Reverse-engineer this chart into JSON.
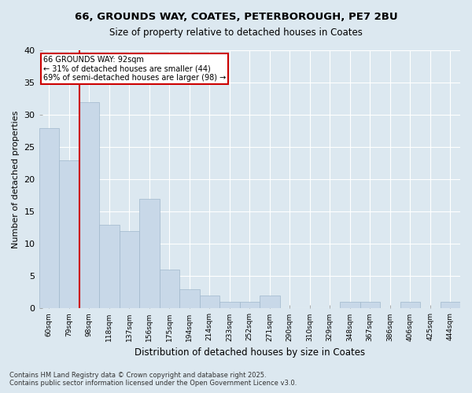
{
  "title_line1": "66, GROUNDS WAY, COATES, PETERBOROUGH, PE7 2BU",
  "title_line2": "Size of property relative to detached houses in Coates",
  "xlabel": "Distribution of detached houses by size in Coates",
  "ylabel": "Number of detached properties",
  "categories": [
    "60sqm",
    "79sqm",
    "98sqm",
    "118sqm",
    "137sqm",
    "156sqm",
    "175sqm",
    "194sqm",
    "214sqm",
    "233sqm",
    "252sqm",
    "271sqm",
    "290sqm",
    "310sqm",
    "329sqm",
    "348sqm",
    "367sqm",
    "386sqm",
    "406sqm",
    "425sqm",
    "444sqm"
  ],
  "values": [
    28,
    23,
    32,
    13,
    12,
    17,
    6,
    3,
    2,
    1,
    1,
    2,
    0,
    0,
    0,
    1,
    1,
    0,
    1,
    0,
    1
  ],
  "bar_color": "#c8d8e8",
  "bar_edge_color": "#a0b8cc",
  "annotation_title": "66 GROUNDS WAY: 92sqm",
  "annotation_line2": "← 31% of detached houses are smaller (44)",
  "annotation_line3": "69% of semi-detached houses are larger (98) →",
  "annotation_box_color": "#cc0000",
  "background_color": "#dce8f0",
  "grid_color": "#ffffff",
  "ylim": [
    0,
    40
  ],
  "yticks": [
    0,
    5,
    10,
    15,
    20,
    25,
    30,
    35,
    40
  ],
  "footer_line1": "Contains HM Land Registry data © Crown copyright and database right 2025.",
  "footer_line2": "Contains public sector information licensed under the Open Government Licence v3.0."
}
